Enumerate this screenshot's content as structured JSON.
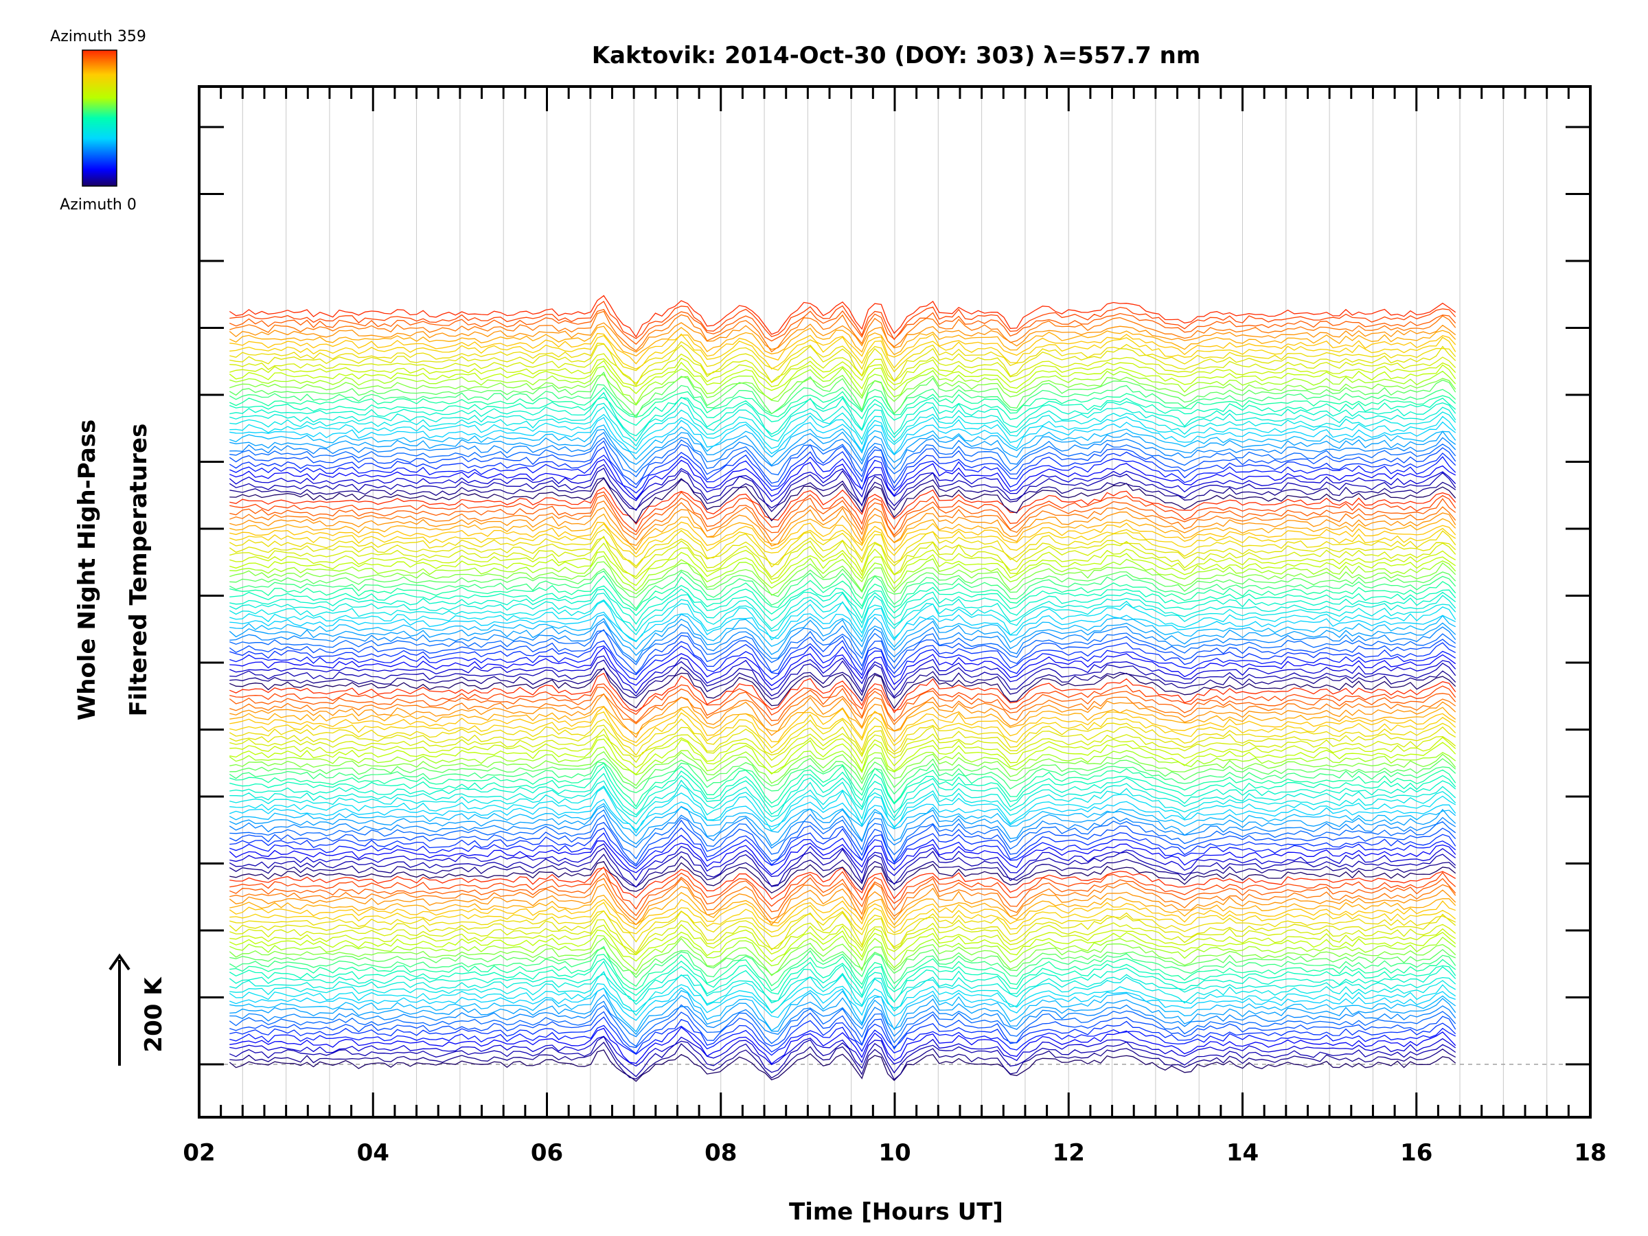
{
  "chart_data": {
    "type": "line",
    "title": "Kaktovik: 2014-Oct-30 (DOY: 303) λ=557.7 nm",
    "xlabel": "Time [Hours UT]",
    "ylabel_line1": "Whole Night High-Pass",
    "ylabel_line2": "Filtered Temperatures",
    "scale_label": "200 K",
    "scale_value_K": 200,
    "xlim": [
      2,
      18
    ],
    "x_tick_labels": [
      "02",
      "04",
      "06",
      "08",
      "10",
      "12",
      "14",
      "16",
      "18"
    ],
    "x_ticks": [
      2,
      4,
      6,
      8,
      10,
      12,
      14,
      16,
      18
    ],
    "data_time_range": [
      2.35,
      16.45
    ],
    "n_traces": 144,
    "offset_K_per_trace": 10,
    "colorbar": {
      "top_label": "Azimuth 359",
      "bottom_label": "Azimuth 0",
      "min": 0,
      "max": 359
    },
    "colors": {
      "axis": "#000000",
      "grid": "#c8c8c8",
      "baseline": "#a0a0a0",
      "background": "#ffffff"
    },
    "series_description": "Stacked azimuth traces of high-pass filtered temperature, colored by azimuth (jet colormap), each offset vertically; bundle spans ~0 to ~1450 K offset",
    "features": [
      {
        "t": 6.0,
        "amp": 12,
        "w": 0.07
      },
      {
        "t": 6.65,
        "amp": 30,
        "w": 0.1
      },
      {
        "t": 7.0,
        "amp": -35,
        "w": 0.15
      },
      {
        "t": 7.55,
        "amp": 25,
        "w": 0.1
      },
      {
        "t": 7.9,
        "amp": -20,
        "w": 0.12
      },
      {
        "t": 8.25,
        "amp": 18,
        "w": 0.08
      },
      {
        "t": 8.6,
        "amp": -40,
        "w": 0.12
      },
      {
        "t": 9.0,
        "amp": 20,
        "w": 0.1
      },
      {
        "t": 9.4,
        "amp": 22,
        "w": 0.08
      },
      {
        "t": 9.6,
        "amp": -35,
        "w": 0.05
      },
      {
        "t": 9.8,
        "amp": 20,
        "w": 0.06
      },
      {
        "t": 10.0,
        "amp": -38,
        "w": 0.08
      },
      {
        "t": 10.4,
        "amp": 18,
        "w": 0.1
      },
      {
        "t": 10.75,
        "amp": 14,
        "w": 0.08
      },
      {
        "t": 11.35,
        "amp": -28,
        "w": 0.1
      },
      {
        "t": 11.75,
        "amp": 10,
        "w": 0.12
      },
      {
        "t": 12.6,
        "amp": 18,
        "w": 0.3
      },
      {
        "t": 13.35,
        "amp": -18,
        "w": 0.15
      },
      {
        "t": 16.3,
        "amp": 18,
        "w": 0.1
      }
    ]
  }
}
